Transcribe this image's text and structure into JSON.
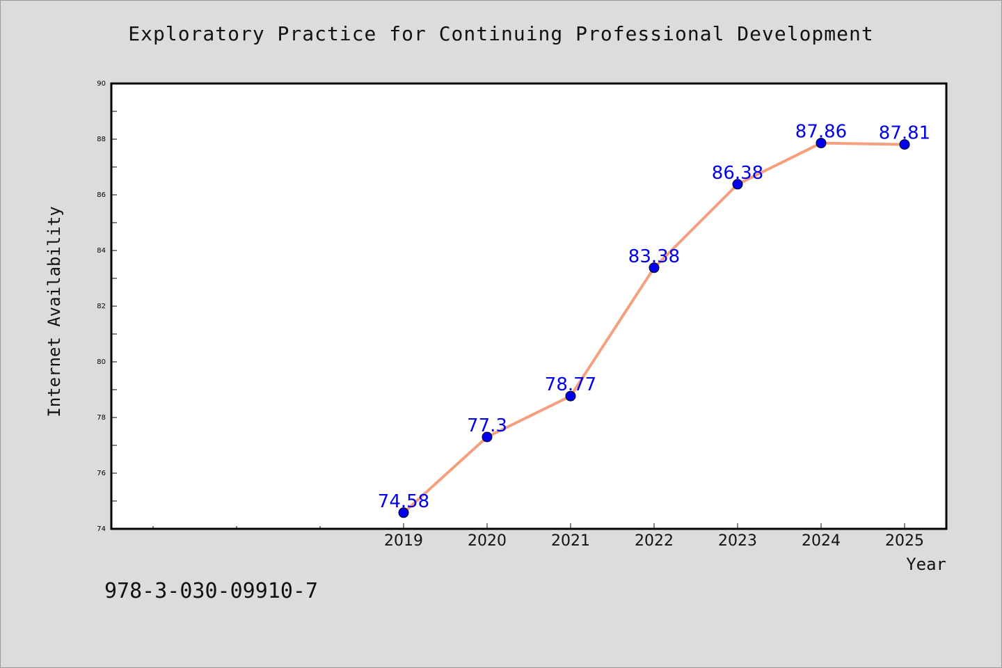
{
  "chart_title": "Exploratory Practice for Continuing Professional Development",
  "footer_code": "978-3-030-09910-7",
  "colors": {
    "background": "#dcdcdc",
    "plot_background": "#ffffff",
    "line": "#f4a07e",
    "marker": "#0000ee",
    "data_label": "#0000ee"
  },
  "chart_data": {
    "type": "line",
    "title": "Exploratory Practice for Continuing Professional Development",
    "xlabel": "Year",
    "ylabel": "Internet Availability",
    "x": [
      "2019",
      "2020",
      "2021",
      "2022",
      "2023",
      "2024",
      "2025"
    ],
    "series": [
      {
        "values": [
          74.58,
          77.3,
          78.77,
          83.38,
          86.38,
          87.86,
          87.81
        ],
        "data_labels": [
          "74.58",
          "77.3",
          "78.77",
          "83.38",
          "86.38",
          "87.86",
          "87.81"
        ]
      }
    ],
    "ylim": [
      74,
      90
    ],
    "yticks": [
      "74",
      "76",
      "78",
      "80",
      "82",
      "84",
      "86",
      "88",
      "90"
    ],
    "grid": false,
    "legend": "none"
  }
}
